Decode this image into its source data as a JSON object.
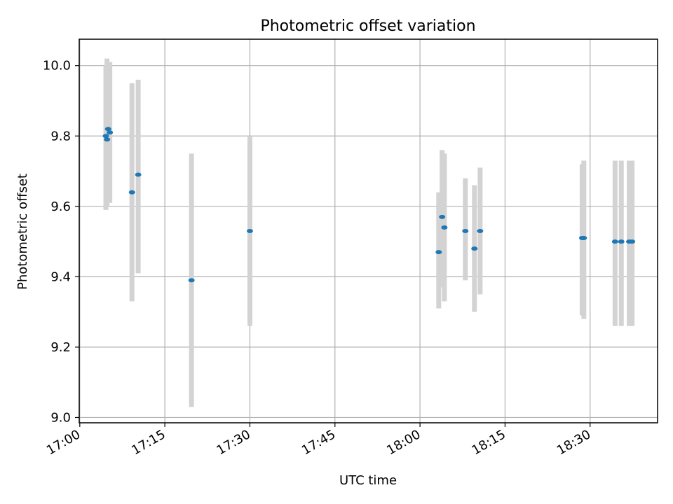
{
  "chart_data": {
    "type": "scatter",
    "title": "Photometric offset variation",
    "xlabel": "UTC time",
    "ylabel": "Photometric offset",
    "x_ticks": [
      "17:00",
      "17:15",
      "17:30",
      "17:45",
      "18:00",
      "18:15",
      "18:30"
    ],
    "y_ticks": [
      "9.0",
      "9.2",
      "9.4",
      "9.6",
      "9.8",
      "10.0"
    ],
    "xlim": [
      "16:59.9",
      "18:41.9"
    ],
    "ylim": [
      8.985,
      10.075
    ],
    "grid": true,
    "colors": {
      "points": "#1f77b4",
      "errorbars": "#d3d3d3",
      "grid": "#b0b0b0"
    },
    "points": [
      {
        "x": "17:04.6",
        "y": 9.8,
        "ylow": 9.59,
        "yhigh": 10.0
      },
      {
        "x": "17:04.8",
        "y": 9.79,
        "ylow": 9.6,
        "yhigh": 10.02
      },
      {
        "x": "17:05.0",
        "y": 9.82,
        "ylow": 9.61,
        "yhigh": 10.01
      },
      {
        "x": "17:05.3",
        "y": 9.81,
        "ylow": 9.61,
        "yhigh": 10.01
      },
      {
        "x": "17:09.2",
        "y": 9.64,
        "ylow": 9.33,
        "yhigh": 9.95
      },
      {
        "x": "17:10.3",
        "y": 9.69,
        "ylow": 9.41,
        "yhigh": 9.96
      },
      {
        "x": "17:19.7",
        "y": 9.39,
        "ylow": 9.03,
        "yhigh": 9.75
      },
      {
        "x": "17:30.0",
        "y": 9.53,
        "ylow": 9.26,
        "yhigh": 9.8
      },
      {
        "x": "18:03.3",
        "y": 9.47,
        "ylow": 9.31,
        "yhigh": 9.64
      },
      {
        "x": "18:03.9",
        "y": 9.57,
        "ylow": 9.37,
        "yhigh": 9.76
      },
      {
        "x": "18:04.3",
        "y": 9.54,
        "ylow": 9.33,
        "yhigh": 9.75
      },
      {
        "x": "18:08.0",
        "y": 9.53,
        "ylow": 9.39,
        "yhigh": 9.68
      },
      {
        "x": "18:09.6",
        "y": 9.48,
        "ylow": 9.3,
        "yhigh": 9.66
      },
      {
        "x": "18:10.6",
        "y": 9.53,
        "ylow": 9.35,
        "yhigh": 9.71
      },
      {
        "x": "18:28.6",
        "y": 9.51,
        "ylow": 9.29,
        "yhigh": 9.72
      },
      {
        "x": "18:28.9",
        "y": 9.51,
        "ylow": 9.28,
        "yhigh": 9.73
      },
      {
        "x": "18:34.4",
        "y": 9.5,
        "ylow": 9.26,
        "yhigh": 9.73
      },
      {
        "x": "18:35.5",
        "y": 9.5,
        "ylow": 9.26,
        "yhigh": 9.73
      },
      {
        "x": "18:36.9",
        "y": 9.5,
        "ylow": 9.26,
        "yhigh": 9.73
      },
      {
        "x": "18:37.4",
        "y": 9.5,
        "ylow": 9.26,
        "yhigh": 9.73
      }
    ]
  }
}
